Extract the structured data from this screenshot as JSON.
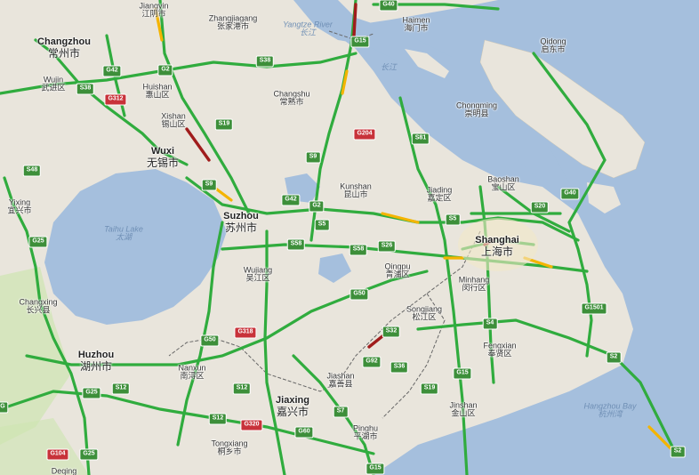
{
  "colors": {
    "water": "#a5bfdd",
    "land": "#e9e5dc",
    "green_land": "#cde5b0",
    "traffic_free": "#30ac3e",
    "traffic_slow": "#f4b400",
    "traffic_jam": "#a01c1c",
    "province_border": "#666666"
  },
  "cities": [
    {
      "id": "jiangyin",
      "en": "Jiangyin",
      "zh": "江阴市",
      "major": false
    },
    {
      "id": "zhangjiagang",
      "en": "Zhangjiagang",
      "zh": "张家港市",
      "major": false
    },
    {
      "id": "haimen",
      "en": "Haimen",
      "zh": "海门市",
      "major": false
    },
    {
      "id": "qidong",
      "en": "Qidong",
      "zh": "启东市",
      "major": false
    },
    {
      "id": "changzhou",
      "en": "Changzhou",
      "zh": "常州市",
      "major": true
    },
    {
      "id": "wujin",
      "en": "Wujin",
      "zh": "武进区",
      "major": false
    },
    {
      "id": "huishan",
      "en": "Huishan",
      "zh": "惠山区",
      "major": false
    },
    {
      "id": "changshu",
      "en": "Changshu",
      "zh": "常熟市",
      "major": false
    },
    {
      "id": "xishan",
      "en": "Xishan",
      "zh": "锡山区",
      "major": false
    },
    {
      "id": "wuxi",
      "en": "Wuxi",
      "zh": "无锡市",
      "major": true
    },
    {
      "id": "chongming",
      "en": "Chongming",
      "zh": "崇明县",
      "major": false
    },
    {
      "id": "kunshan",
      "en": "Kunshan",
      "zh": "昆山市",
      "major": false
    },
    {
      "id": "baoshan",
      "en": "Baoshan",
      "zh": "宝山区",
      "major": false
    },
    {
      "id": "jiading",
      "en": "Jiading",
      "zh": "嘉定区",
      "major": false
    },
    {
      "id": "yixing",
      "en": "Yixing",
      "zh": "宜兴市",
      "major": false
    },
    {
      "id": "suzhou",
      "en": "Suzhou",
      "zh": "苏州市",
      "major": true
    },
    {
      "id": "shanghai",
      "en": "Shanghai",
      "zh": "上海市",
      "major": true
    },
    {
      "id": "qingpu",
      "en": "Qingpu",
      "zh": "青浦区",
      "major": false
    },
    {
      "id": "wujiang",
      "en": "Wujiang",
      "zh": "吴江区",
      "major": false
    },
    {
      "id": "minhang",
      "en": "Minhang",
      "zh": "闵行区",
      "major": false
    },
    {
      "id": "changxing",
      "en": "Changxing",
      "zh": "长兴县",
      "major": false
    },
    {
      "id": "songjiang",
      "en": "Songjiang",
      "zh": "松江区",
      "major": false
    },
    {
      "id": "fengxian",
      "en": "Fengxian",
      "zh": "奉贤区",
      "major": false
    },
    {
      "id": "huzhou",
      "en": "Huzhou",
      "zh": "湖州市",
      "major": true
    },
    {
      "id": "nanxun",
      "en": "Nanxun",
      "zh": "南浔区",
      "major": false
    },
    {
      "id": "jiashan",
      "en": "Jiashan",
      "zh": "嘉善县",
      "major": false
    },
    {
      "id": "jiaxing",
      "en": "Jiaxing",
      "zh": "嘉兴市",
      "major": true
    },
    {
      "id": "jinshan",
      "en": "Jinshan",
      "zh": "金山区",
      "major": false
    },
    {
      "id": "pinghu",
      "en": "Pinghu",
      "zh": "平湖市",
      "major": false
    },
    {
      "id": "tongxiang",
      "en": "Tongxiang",
      "zh": "桐乡市",
      "major": false
    },
    {
      "id": "deqing",
      "en": "Deqing",
      "zh": "",
      "major": false
    }
  ],
  "water_labels": [
    {
      "id": "yangtze",
      "en": "Yangtze River",
      "zh": "长江"
    },
    {
      "id": "taihu",
      "en": "Taihu Lake",
      "zh": "太湖"
    },
    {
      "id": "hangzhou_bay",
      "en": "Hangzhou Bay",
      "zh": "杭州湾"
    },
    {
      "id": "yangtze_mouth",
      "en": "",
      "zh": "长江"
    }
  ],
  "shields": [
    {
      "id": "g40_top",
      "code": "G40",
      "natl": false
    },
    {
      "id": "g15_top",
      "code": "G15",
      "natl": false
    },
    {
      "id": "g2_a",
      "code": "G2",
      "natl": false
    },
    {
      "id": "g42_a",
      "code": "G42",
      "natl": false
    },
    {
      "id": "s38_a",
      "code": "S38",
      "natl": false
    },
    {
      "id": "s38_b",
      "code": "S38",
      "natl": false
    },
    {
      "id": "g312",
      "code": "G312",
      "natl": true
    },
    {
      "id": "s19_a",
      "code": "S19",
      "natl": false
    },
    {
      "id": "g204",
      "code": "G204",
      "natl": true
    },
    {
      "id": "s81",
      "code": "S81",
      "natl": false
    },
    {
      "id": "s48",
      "code": "S48",
      "natl": false
    },
    {
      "id": "s9_a",
      "code": "S9",
      "natl": false
    },
    {
      "id": "s9_b",
      "code": "S9",
      "natl": false
    },
    {
      "id": "g40_mid",
      "code": "G40",
      "natl": false
    },
    {
      "id": "g42_b",
      "code": "G42",
      "natl": false
    },
    {
      "id": "g2_b",
      "code": "G2",
      "natl": false
    },
    {
      "id": "s5_a",
      "code": "S5",
      "natl": false
    },
    {
      "id": "s20",
      "code": "S20",
      "natl": false
    },
    {
      "id": "s5_b",
      "code": "S5",
      "natl": false
    },
    {
      "id": "g25_a",
      "code": "G25",
      "natl": false
    },
    {
      "id": "s58_a",
      "code": "S58",
      "natl": false
    },
    {
      "id": "s26",
      "code": "S26",
      "natl": false
    },
    {
      "id": "s58_b",
      "code": "S58",
      "natl": false
    },
    {
      "id": "g50_a",
      "code": "G50",
      "natl": false
    },
    {
      "id": "g1501",
      "code": "G1501",
      "natl": false
    },
    {
      "id": "s4",
      "code": "S4",
      "natl": false
    },
    {
      "id": "g318",
      "code": "G318",
      "natl": true
    },
    {
      "id": "g50_b",
      "code": "G50",
      "natl": false
    },
    {
      "id": "s32",
      "code": "S32",
      "natl": false
    },
    {
      "id": "g92",
      "code": "G92",
      "natl": false
    },
    {
      "id": "s36",
      "code": "S36",
      "natl": false
    },
    {
      "id": "s2",
      "code": "S2",
      "natl": false
    },
    {
      "id": "g15_mid",
      "code": "G15",
      "natl": false
    },
    {
      "id": "g25_b",
      "code": "G25",
      "natl": false
    },
    {
      "id": "s12_a",
      "code": "S12",
      "natl": false
    },
    {
      "id": "s12_b",
      "code": "S12",
      "natl": false
    },
    {
      "id": "s19_b",
      "code": "S19",
      "natl": false
    },
    {
      "id": "s12_c",
      "code": "S12",
      "natl": false
    },
    {
      "id": "s7",
      "code": "S7",
      "natl": false
    },
    {
      "id": "g320",
      "code": "G320",
      "natl": true
    },
    {
      "id": "g60",
      "code": "G60",
      "natl": false
    },
    {
      "id": "g104",
      "code": "G104",
      "natl": true
    },
    {
      "id": "g25_c",
      "code": "G25",
      "natl": false
    },
    {
      "id": "g15_bot",
      "code": "G15",
      "natl": false
    },
    {
      "id": "s2_b",
      "code": "S2",
      "natl": false
    },
    {
      "id": "g_left",
      "code": "G",
      "natl": false
    }
  ]
}
